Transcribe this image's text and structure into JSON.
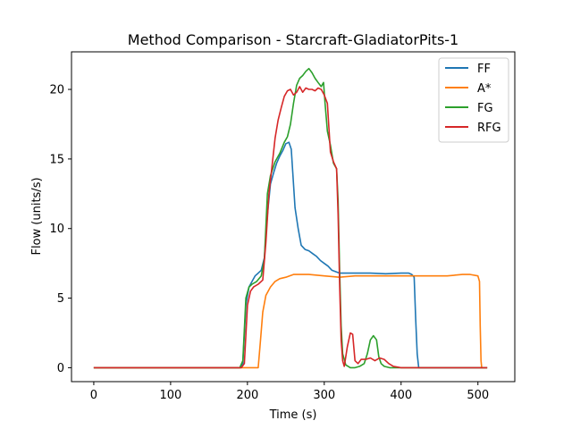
{
  "chart_data": {
    "type": "line",
    "title": "Method Comparison - Starcraft-GladiatorPits-1",
    "xlabel": "Time (s)",
    "ylabel": "Flow (units/s)",
    "xlim": [
      -29,
      548
    ],
    "ylim": [
      -1.0,
      22.7
    ],
    "xticks": [
      0,
      100,
      200,
      300,
      400,
      500
    ],
    "yticks": [
      0,
      5,
      10,
      15,
      20
    ],
    "grid": false,
    "legend_position": "top-right",
    "series": [
      {
        "name": "FF",
        "color": "#1f77b4",
        "points": [
          [
            0,
            0
          ],
          [
            100,
            0
          ],
          [
            190,
            0
          ],
          [
            194,
            0.3
          ],
          [
            198,
            4.5
          ],
          [
            202,
            5.8
          ],
          [
            206,
            6.2
          ],
          [
            210,
            6.6
          ],
          [
            214,
            6.8
          ],
          [
            218,
            7.0
          ],
          [
            222,
            7.9
          ],
          [
            226,
            11.0
          ],
          [
            230,
            13.2
          ],
          [
            234,
            14.0
          ],
          [
            238,
            14.7
          ],
          [
            242,
            15.2
          ],
          [
            246,
            15.6
          ],
          [
            250,
            16.1
          ],
          [
            254,
            16.2
          ],
          [
            257,
            15.7
          ],
          [
            259,
            14.0
          ],
          [
            262,
            11.5
          ],
          [
            266,
            10.0
          ],
          [
            270,
            8.8
          ],
          [
            275,
            8.5
          ],
          [
            280,
            8.4
          ],
          [
            285,
            8.2
          ],
          [
            290,
            8.0
          ],
          [
            295,
            7.7
          ],
          [
            300,
            7.5
          ],
          [
            305,
            7.3
          ],
          [
            310,
            7.0
          ],
          [
            315,
            6.9
          ],
          [
            320,
            6.8
          ],
          [
            340,
            6.8
          ],
          [
            360,
            6.8
          ],
          [
            380,
            6.75
          ],
          [
            400,
            6.8
          ],
          [
            410,
            6.8
          ],
          [
            414,
            6.7
          ],
          [
            417,
            6.5
          ],
          [
            419,
            3.5
          ],
          [
            421,
            1.0
          ],
          [
            423,
            0
          ],
          [
            450,
            0
          ],
          [
            500,
            0
          ],
          [
            512,
            0
          ]
        ]
      },
      {
        "name": "A*",
        "color": "#ff7f0e",
        "points": [
          [
            0,
            0
          ],
          [
            100,
            0
          ],
          [
            210,
            0
          ],
          [
            214,
            0
          ],
          [
            217,
            2.0
          ],
          [
            220,
            4.0
          ],
          [
            224,
            5.2
          ],
          [
            230,
            5.8
          ],
          [
            236,
            6.2
          ],
          [
            242,
            6.4
          ],
          [
            250,
            6.5
          ],
          [
            260,
            6.7
          ],
          [
            280,
            6.7
          ],
          [
            300,
            6.6
          ],
          [
            320,
            6.5
          ],
          [
            340,
            6.6
          ],
          [
            360,
            6.6
          ],
          [
            380,
            6.6
          ],
          [
            400,
            6.6
          ],
          [
            420,
            6.6
          ],
          [
            440,
            6.6
          ],
          [
            460,
            6.6
          ],
          [
            480,
            6.7
          ],
          [
            490,
            6.7
          ],
          [
            500,
            6.6
          ],
          [
            502,
            6.2
          ],
          [
            503,
            3.0
          ],
          [
            504,
            0.5
          ],
          [
            505,
            0
          ],
          [
            512,
            0
          ]
        ]
      },
      {
        "name": "FG",
        "color": "#2ca02c",
        "points": [
          [
            0,
            0
          ],
          [
            100,
            0
          ],
          [
            190,
            0
          ],
          [
            194,
            0.5
          ],
          [
            198,
            5.0
          ],
          [
            202,
            5.8
          ],
          [
            206,
            6.0
          ],
          [
            212,
            6.2
          ],
          [
            218,
            6.6
          ],
          [
            222,
            7.8
          ],
          [
            226,
            12.5
          ],
          [
            230,
            13.8
          ],
          [
            236,
            14.8
          ],
          [
            242,
            15.4
          ],
          [
            248,
            16.2
          ],
          [
            252,
            16.6
          ],
          [
            256,
            17.5
          ],
          [
            260,
            19.0
          ],
          [
            264,
            20.3
          ],
          [
            268,
            20.8
          ],
          [
            272,
            21.0
          ],
          [
            276,
            21.3
          ],
          [
            280,
            21.5
          ],
          [
            284,
            21.2
          ],
          [
            288,
            20.8
          ],
          [
            292,
            20.5
          ],
          [
            296,
            20.2
          ],
          [
            299,
            20.5
          ],
          [
            301,
            19.0
          ],
          [
            304,
            17.0
          ],
          [
            308,
            16.0
          ],
          [
            312,
            14.7
          ],
          [
            316,
            14.3
          ],
          [
            318,
            12.0
          ],
          [
            320,
            7.0
          ],
          [
            322,
            3.0
          ],
          [
            324,
            1.0
          ],
          [
            328,
            0.2
          ],
          [
            334,
            0
          ],
          [
            340,
            0
          ],
          [
            346,
            0.1
          ],
          [
            352,
            0.3
          ],
          [
            356,
            1.0
          ],
          [
            360,
            2.0
          ],
          [
            364,
            2.3
          ],
          [
            368,
            2.0
          ],
          [
            371,
            0.8
          ],
          [
            374,
            0.3
          ],
          [
            378,
            0.1
          ],
          [
            385,
            0
          ],
          [
            400,
            0
          ],
          [
            450,
            0
          ],
          [
            500,
            0
          ],
          [
            512,
            0
          ]
        ]
      },
      {
        "name": "RFG",
        "color": "#d62728",
        "points": [
          [
            0,
            0
          ],
          [
            100,
            0
          ],
          [
            192,
            0
          ],
          [
            196,
            0.3
          ],
          [
            200,
            4.5
          ],
          [
            204,
            5.5
          ],
          [
            208,
            5.8
          ],
          [
            214,
            6.0
          ],
          [
            220,
            6.3
          ],
          [
            224,
            9.0
          ],
          [
            228,
            12.5
          ],
          [
            232,
            14.5
          ],
          [
            236,
            16.5
          ],
          [
            240,
            17.8
          ],
          [
            244,
            18.7
          ],
          [
            248,
            19.5
          ],
          [
            252,
            19.9
          ],
          [
            256,
            20.0
          ],
          [
            260,
            19.6
          ],
          [
            264,
            19.8
          ],
          [
            268,
            20.2
          ],
          [
            272,
            19.8
          ],
          [
            276,
            20.1
          ],
          [
            280,
            20.0
          ],
          [
            284,
            20.0
          ],
          [
            288,
            19.9
          ],
          [
            292,
            20.1
          ],
          [
            296,
            20.0
          ],
          [
            300,
            19.6
          ],
          [
            304,
            19.0
          ],
          [
            308,
            15.5
          ],
          [
            312,
            14.8
          ],
          [
            316,
            14.3
          ],
          [
            318,
            11.0
          ],
          [
            320,
            6.0
          ],
          [
            322,
            2.0
          ],
          [
            324,
            0.5
          ],
          [
            326,
            0.1
          ],
          [
            330,
            1.5
          ],
          [
            334,
            2.5
          ],
          [
            337,
            2.4
          ],
          [
            340,
            0.5
          ],
          [
            344,
            0.3
          ],
          [
            348,
            0.6
          ],
          [
            354,
            0.6
          ],
          [
            360,
            0.7
          ],
          [
            366,
            0.5
          ],
          [
            372,
            0.7
          ],
          [
            378,
            0.6
          ],
          [
            384,
            0.3
          ],
          [
            390,
            0.1
          ],
          [
            400,
            0
          ],
          [
            450,
            0
          ],
          [
            500,
            0
          ],
          [
            512,
            0
          ]
        ]
      }
    ]
  }
}
